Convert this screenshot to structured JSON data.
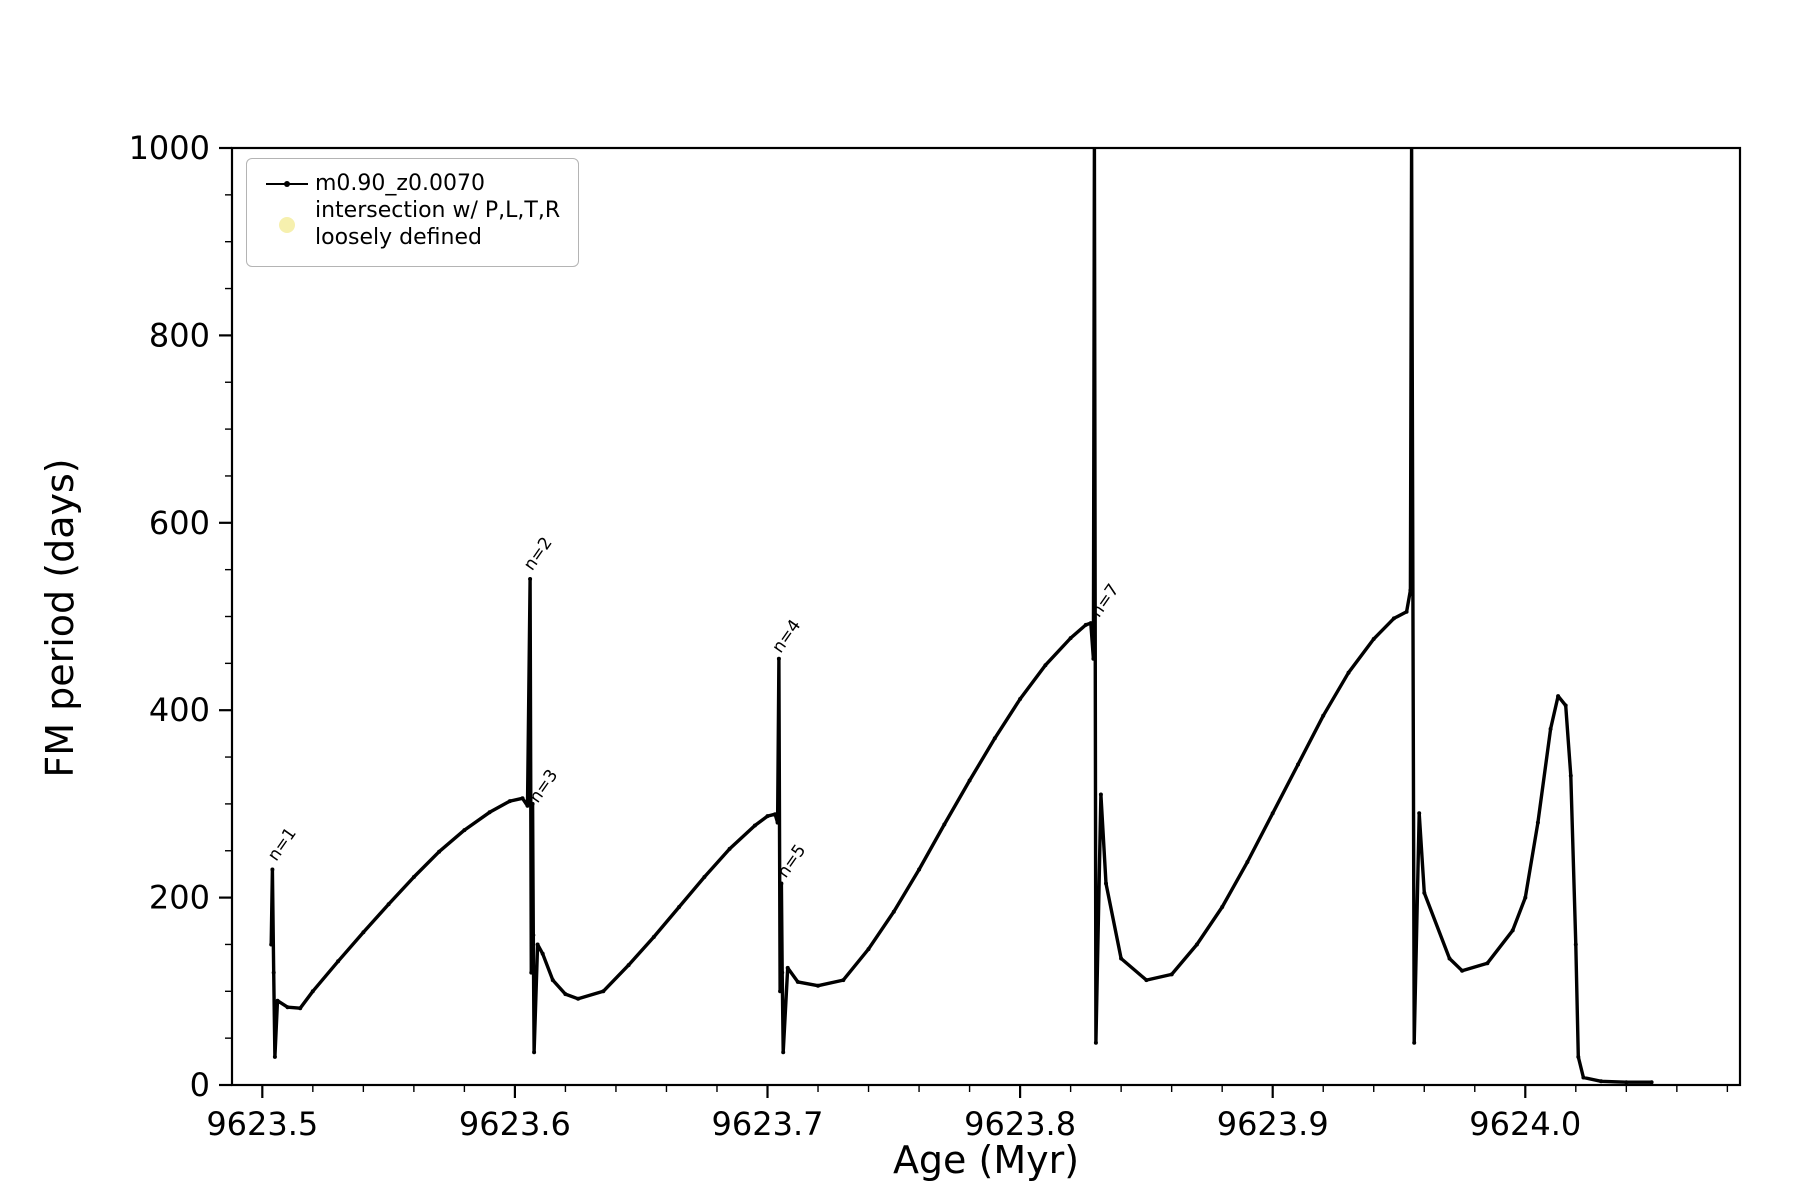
{
  "figure": {
    "background": "#ffffff",
    "xlabel": "Age (Myr)",
    "ylabel": "FM period (days)"
  },
  "legend": {
    "entries": [
      {
        "label": "m0.90_z0.0070",
        "marker": "line-dot",
        "color": "#000000"
      },
      {
        "label_line1": "intersection w/ P,L,T,R",
        "label_line2": "loosely defined",
        "marker": "dot",
        "color": "#f6f0ae"
      }
    ]
  },
  "chart_data": {
    "type": "line",
    "title": "",
    "xlabel": "Age (Myr)",
    "ylabel": "FM period (days)",
    "xlim": [
      9623.488,
      9624.085
    ],
    "ylim": [
      0,
      1000
    ],
    "grid": false,
    "legend_position": "upper-left",
    "xticks": {
      "values": [
        9623.5,
        9623.6,
        9623.7,
        9623.8,
        9623.9,
        9624.0
      ],
      "labels": [
        "9623.5",
        "9623.6",
        "9623.7",
        "9623.8",
        "9623.9",
        "9624.0"
      ]
    },
    "yticks": {
      "values": [
        0,
        200,
        400,
        600,
        800,
        1000
      ],
      "labels": [
        "0",
        "200",
        "400",
        "600",
        "800",
        "1000"
      ]
    },
    "x_minor_step": 0.02,
    "y_minor_step": 50,
    "series": [
      {
        "name": "m0.90_z0.0070",
        "color": "#000000",
        "points": [
          [
            9623.5035,
            150
          ],
          [
            9623.504,
            230
          ],
          [
            9623.5045,
            120
          ],
          [
            9623.505,
            30
          ],
          [
            9623.506,
            90
          ],
          [
            9623.51,
            83
          ],
          [
            9623.515,
            82
          ],
          [
            9623.52,
            100
          ],
          [
            9623.53,
            132
          ],
          [
            9623.54,
            163
          ],
          [
            9623.55,
            193
          ],
          [
            9623.56,
            222
          ],
          [
            9623.57,
            249
          ],
          [
            9623.58,
            272
          ],
          [
            9623.59,
            291
          ],
          [
            9623.598,
            303
          ],
          [
            9623.603,
            306
          ],
          [
            9623.605,
            298
          ],
          [
            9623.606,
            540
          ],
          [
            9623.6065,
            120
          ],
          [
            9623.607,
            300
          ],
          [
            9623.6073,
            160
          ],
          [
            9623.6076,
            35
          ],
          [
            9623.609,
            150
          ],
          [
            9623.611,
            140
          ],
          [
            9623.615,
            112
          ],
          [
            9623.62,
            97
          ],
          [
            9623.625,
            92
          ],
          [
            9623.635,
            100
          ],
          [
            9623.645,
            128
          ],
          [
            9623.655,
            158
          ],
          [
            9623.665,
            190
          ],
          [
            9623.675,
            222
          ],
          [
            9623.685,
            252
          ],
          [
            9623.695,
            277
          ],
          [
            9623.7,
            287
          ],
          [
            9623.703,
            289
          ],
          [
            9623.704,
            280
          ],
          [
            9623.7045,
            455
          ],
          [
            9623.705,
            100
          ],
          [
            9623.7055,
            215
          ],
          [
            9623.7058,
            120
          ],
          [
            9623.7062,
            35
          ],
          [
            9623.708,
            125
          ],
          [
            9623.712,
            110
          ],
          [
            9623.72,
            106
          ],
          [
            9623.73,
            112
          ],
          [
            9623.74,
            145
          ],
          [
            9623.75,
            185
          ],
          [
            9623.76,
            230
          ],
          [
            9623.77,
            278
          ],
          [
            9623.78,
            325
          ],
          [
            9623.79,
            370
          ],
          [
            9623.8,
            412
          ],
          [
            9623.81,
            448
          ],
          [
            9623.82,
            477
          ],
          [
            9623.826,
            491
          ],
          [
            9623.828,
            493
          ],
          [
            9623.829,
            455
          ],
          [
            9623.8294,
            1005
          ],
          [
            9623.83,
            45
          ],
          [
            9623.832,
            310
          ],
          [
            9623.834,
            215
          ],
          [
            9623.84,
            135
          ],
          [
            9623.85,
            112
          ],
          [
            9623.86,
            118
          ],
          [
            9623.87,
            150
          ],
          [
            9623.88,
            190
          ],
          [
            9623.89,
            238
          ],
          [
            9623.9,
            290
          ],
          [
            9623.91,
            342
          ],
          [
            9623.92,
            394
          ],
          [
            9623.93,
            440
          ],
          [
            9623.94,
            476
          ],
          [
            9623.948,
            498
          ],
          [
            9623.953,
            505
          ],
          [
            9623.9545,
            528
          ],
          [
            9623.955,
            1005
          ],
          [
            9623.956,
            45
          ],
          [
            9623.958,
            290
          ],
          [
            9623.96,
            205
          ],
          [
            9623.97,
            135
          ],
          [
            9623.975,
            122
          ],
          [
            9623.985,
            130
          ],
          [
            9623.995,
            165
          ],
          [
            9624.0,
            200
          ],
          [
            9624.005,
            280
          ],
          [
            9624.01,
            380
          ],
          [
            9624.013,
            415
          ],
          [
            9624.016,
            405
          ],
          [
            9624.018,
            330
          ],
          [
            9624.02,
            150
          ],
          [
            9624.021,
            30
          ],
          [
            9624.023,
            8
          ],
          [
            9624.03,
            4
          ],
          [
            9624.04,
            3
          ],
          [
            9624.05,
            3
          ]
        ]
      }
    ],
    "annotations": [
      {
        "text": "n=1",
        "x": 9623.5055,
        "y": 238,
        "rotation": -55
      },
      {
        "text": "n=2",
        "x": 9623.6068,
        "y": 548,
        "rotation": -55
      },
      {
        "text": "n=3",
        "x": 9623.609,
        "y": 300,
        "rotation": -55
      },
      {
        "text": "n=4",
        "x": 9623.7052,
        "y": 460,
        "rotation": -55
      },
      {
        "text": "n=5",
        "x": 9623.7072,
        "y": 220,
        "rotation": -55
      },
      {
        "text": "n=7",
        "x": 9623.8312,
        "y": 498,
        "rotation": -55
      }
    ]
  }
}
